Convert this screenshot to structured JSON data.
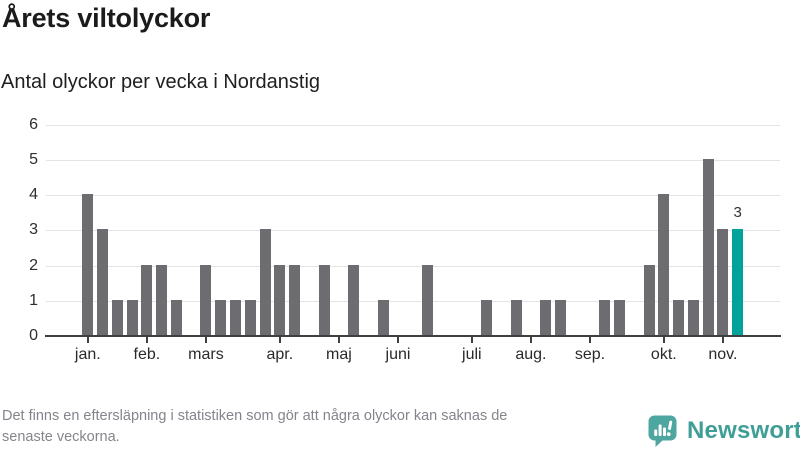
{
  "header": {
    "title": "Årets viltolyckor",
    "subtitle": "Antal olyckor per vecka i Nordanstig"
  },
  "chart_data": {
    "type": "bar",
    "title": "Årets viltolyckor",
    "subtitle": "Antal olyckor per vecka i Nordanstig",
    "x_description": "weekly bars from first week of January (week 1) to week 45; weeks with 0 accidents have no bar",
    "values": [
      4,
      3,
      1,
      1,
      2,
      2,
      1,
      0,
      2,
      1,
      1,
      1,
      3,
      2,
      2,
      0,
      2,
      0,
      2,
      0,
      1,
      0,
      0,
      2,
      0,
      0,
      0,
      1,
      0,
      1,
      0,
      1,
      1,
      0,
      0,
      1,
      1,
      0,
      2,
      4,
      1,
      1,
      5,
      3,
      3
    ],
    "y_ticks": [
      0,
      1,
      2,
      3,
      4,
      5,
      6
    ],
    "ylim": [
      0,
      6
    ],
    "grid": true,
    "legend": "none",
    "month_ticks": [
      {
        "label": "jan.",
        "week": 1
      },
      {
        "label": "feb.",
        "week": 5
      },
      {
        "label": "mars",
        "week": 9
      },
      {
        "label": "apr.",
        "week": 14
      },
      {
        "label": "maj",
        "week": 18
      },
      {
        "label": "juni",
        "week": 22
      },
      {
        "label": "juli",
        "week": 27
      },
      {
        "label": "aug.",
        "week": 31
      },
      {
        "label": "sep.",
        "week": 35
      },
      {
        "label": "okt.",
        "week": 40
      },
      {
        "label": "nov.",
        "week": 44
      }
    ],
    "highlight_last_bar": true,
    "last_value_label": "3",
    "colors": {
      "bar": "#6d6d71",
      "highlight": "#00a29a",
      "grid": "#e4e4e4",
      "axis": "#3f3f3f",
      "label": "#333333"
    }
  },
  "footer": {
    "note_lines": [
      "Det finns en eftersläpning i statistiken som gör att några olyckor kan saknas de",
      "senaste veckorna."
    ],
    "brand": "Newsworthy",
    "logo_icon": "newsworthy-speech-bubble-bar-chart-icon",
    "brand_color": "#3f9e96",
    "logo_badge_color": "#4da69f"
  }
}
